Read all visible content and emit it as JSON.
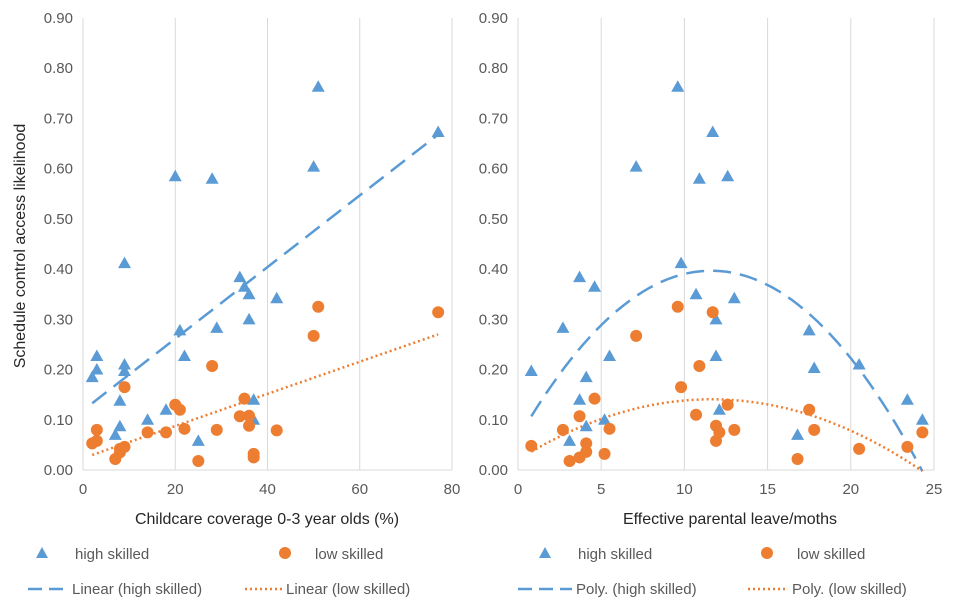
{
  "colors": {
    "high": "#5B9BD5",
    "low": "#ED7D31",
    "grid": "#D9D9D9",
    "text": "#595959"
  },
  "chart_data": [
    {
      "type": "scatter",
      "title": "",
      "xlabel": "Childcare coverage 0-3 year olds (%)",
      "ylabel": "Schedule control access likelihood",
      "xlim": [
        0,
        80
      ],
      "ylim": [
        0,
        0.9
      ],
      "xticks": [
        "0",
        "20",
        "40",
        "60",
        "80"
      ],
      "yticks": [
        "0.00",
        "0.10",
        "0.20",
        "0.30",
        "0.40",
        "0.50",
        "0.60",
        "0.70",
        "0.80",
        "0.90"
      ],
      "grid": "vertical",
      "series": [
        {
          "name": "high skilled",
          "marker": "triangle",
          "points": [
            [
              2,
              0.185
            ],
            [
              3,
              0.2
            ],
            [
              3,
              0.227
            ],
            [
              7,
              0.07
            ],
            [
              8,
              0.138
            ],
            [
              8,
              0.087
            ],
            [
              9,
              0.197
            ],
            [
              9,
              0.21
            ],
            [
              9,
              0.412
            ],
            [
              14,
              0.1
            ],
            [
              18,
              0.12
            ],
            [
              20,
              0.585
            ],
            [
              21,
              0.278
            ],
            [
              22,
              0.227
            ],
            [
              25,
              0.058
            ],
            [
              28,
              0.58
            ],
            [
              29,
              0.283
            ],
            [
              34,
              0.384
            ],
            [
              35,
              0.365
            ],
            [
              36,
              0.35
            ],
            [
              36,
              0.3
            ],
            [
              37,
              0.14
            ],
            [
              37,
              0.1
            ],
            [
              42,
              0.342
            ],
            [
              50,
              0.604
            ],
            [
              51,
              0.763
            ],
            [
              77,
              0.673
            ]
          ]
        },
        {
          "name": "low skilled",
          "marker": "circle",
          "points": [
            [
              2,
              0.053
            ],
            [
              3,
              0.058
            ],
            [
              3,
              0.08
            ],
            [
              7,
              0.022
            ],
            [
              8,
              0.035
            ],
            [
              8,
              0.042
            ],
            [
              9,
              0.046
            ],
            [
              9,
              0.165
            ],
            [
              14,
              0.075
            ],
            [
              18,
              0.075
            ],
            [
              20,
              0.13
            ],
            [
              21,
              0.12
            ],
            [
              22,
              0.082
            ],
            [
              25,
              0.018
            ],
            [
              28,
              0.207
            ],
            [
              29,
              0.08
            ],
            [
              34,
              0.107
            ],
            [
              35,
              0.142
            ],
            [
              36,
              0.108
            ],
            [
              36,
              0.088
            ],
            [
              37,
              0.032
            ],
            [
              37,
              0.025
            ],
            [
              42,
              0.079
            ],
            [
              50,
              0.267
            ],
            [
              51,
              0.325
            ],
            [
              77,
              0.314
            ]
          ]
        }
      ],
      "trendlines": [
        {
          "name": "Linear (high skilled)",
          "kind": "linear",
          "style": "dashed",
          "from": [
            2,
            0.133
          ],
          "to": [
            77,
            0.668
          ]
        },
        {
          "name": "Linear (low skilled)",
          "kind": "linear",
          "style": "dotted",
          "from": [
            2,
            0.03
          ],
          "to": [
            77,
            0.27
          ]
        }
      ],
      "legend_position": "bottom"
    },
    {
      "type": "scatter",
      "title": "",
      "xlabel": "Effective parental leave/moths",
      "ylabel": "",
      "xlim": [
        0,
        25
      ],
      "ylim": [
        0,
        0.9
      ],
      "xticks": [
        "0",
        "5",
        "10",
        "15",
        "20",
        "25"
      ],
      "yticks": [
        "0.00",
        "0.10",
        "0.20",
        "0.30",
        "0.40",
        "0.50",
        "0.60",
        "0.70",
        "0.80",
        "0.90"
      ],
      "grid": "vertical",
      "series": [
        {
          "name": "high skilled",
          "marker": "triangle",
          "points": [
            [
              0.8,
              0.197
            ],
            [
              2.7,
              0.283
            ],
            [
              3.1,
              0.058
            ],
            [
              3.7,
              0.384
            ],
            [
              3.7,
              0.14
            ],
            [
              4.1,
              0.185
            ],
            [
              4.1,
              0.087
            ],
            [
              4.6,
              0.365
            ],
            [
              5.2,
              0.1
            ],
            [
              5.5,
              0.227
            ],
            [
              7.1,
              0.604
            ],
            [
              9.6,
              0.763
            ],
            [
              9.8,
              0.412
            ],
            [
              10.7,
              0.35
            ],
            [
              10.9,
              0.58
            ],
            [
              11.7,
              0.673
            ],
            [
              11.9,
              0.3
            ],
            [
              11.9,
              0.227
            ],
            [
              12.1,
              0.12
            ],
            [
              12.6,
              0.585
            ],
            [
              13,
              0.342
            ],
            [
              16.8,
              0.07
            ],
            [
              17.5,
              0.278
            ],
            [
              17.8,
              0.203
            ],
            [
              20.5,
              0.21
            ],
            [
              23.4,
              0.14
            ],
            [
              24.3,
              0.1
            ]
          ]
        },
        {
          "name": "low skilled",
          "marker": "circle",
          "points": [
            [
              0.8,
              0.048
            ],
            [
              2.7,
              0.08
            ],
            [
              3.1,
              0.018
            ],
            [
              3.7,
              0.107
            ],
            [
              3.7,
              0.025
            ],
            [
              4.1,
              0.053
            ],
            [
              4.1,
              0.036
            ],
            [
              4.6,
              0.142
            ],
            [
              5.2,
              0.032
            ],
            [
              5.5,
              0.082
            ],
            [
              7.1,
              0.267
            ],
            [
              9.6,
              0.325
            ],
            [
              9.8,
              0.165
            ],
            [
              10.7,
              0.11
            ],
            [
              10.9,
              0.207
            ],
            [
              11.7,
              0.314
            ],
            [
              11.9,
              0.088
            ],
            [
              11.9,
              0.058
            ],
            [
              12.1,
              0.075
            ],
            [
              12.6,
              0.13
            ],
            [
              13,
              0.08
            ],
            [
              16.8,
              0.022
            ],
            [
              17.5,
              0.12
            ],
            [
              17.8,
              0.08
            ],
            [
              20.5,
              0.042
            ],
            [
              23.4,
              0.046
            ],
            [
              24.3,
              0.075
            ]
          ]
        }
      ],
      "trendlines": [
        {
          "name": "Poly. (high skilled)",
          "kind": "poly2",
          "style": "dashed",
          "range": [
            0.8,
            24.3
          ],
          "coef": [
            0.0624,
            0.0576,
            -0.00248
          ]
        },
        {
          "name": "Poly. (low skilled)",
          "kind": "poly2",
          "style": "dotted",
          "range": [
            0.8,
            24.3
          ],
          "coef": [
            0.0204,
            0.0207,
            -0.00089
          ]
        }
      ],
      "legend_position": "bottom"
    }
  ]
}
